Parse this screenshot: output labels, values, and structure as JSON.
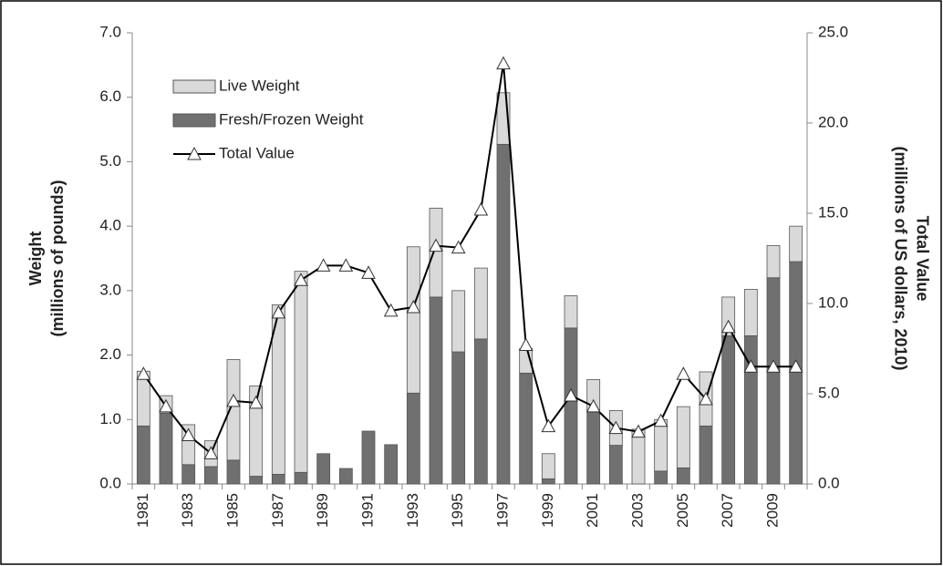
{
  "chart_data": {
    "type": "bar",
    "stacked": true,
    "ylabel": [
      "Weight",
      "(millions of pounds)"
    ],
    "y2label": [
      "Total Value",
      "(millions of US dollars, 2010)"
    ],
    "categories": [
      "1981",
      null,
      "1983",
      null,
      "1985",
      null,
      "1987",
      null,
      "1989",
      null,
      "1991",
      null,
      "1993",
      null,
      "1995",
      null,
      "1997",
      null,
      "1999",
      null,
      "2001",
      null,
      "2003",
      null,
      "2005",
      null,
      "2007",
      null,
      "2009",
      null
    ],
    "series": [
      {
        "name": "Fresh/Frozen Weight",
        "type": "bar",
        "color": "#707070",
        "values": [
          0.9,
          1.1,
          0.3,
          0.27,
          0.37,
          0.12,
          0.15,
          0.18,
          0.47,
          0.24,
          0.82,
          0.61,
          1.41,
          2.9,
          2.05,
          2.25,
          5.27,
          1.72,
          0.08,
          2.42,
          1.15,
          0.6,
          0,
          0.2,
          0.25,
          0.9,
          2.3,
          2.3,
          3.2,
          3.45
        ]
      },
      {
        "name": "Live Weight",
        "type": "bar",
        "color": "#d9d9d9",
        "values": [
          0.85,
          0.27,
          0.62,
          0.4,
          1.56,
          1.4,
          2.63,
          3.12,
          0,
          0,
          0,
          0,
          2.27,
          1.38,
          0.95,
          1.1,
          0.8,
          0.38,
          0.39,
          0.5,
          0.47,
          0.54,
          0.85,
          0.8,
          0.95,
          0.84,
          0.6,
          0.72,
          0.5,
          0.55
        ]
      },
      {
        "name": "Total Value",
        "type": "line",
        "axis": "y2",
        "color": "#000000",
        "values": [
          6.1,
          4.3,
          2.7,
          1.7,
          4.6,
          4.5,
          9.5,
          11.3,
          12.1,
          12.1,
          11.7,
          9.6,
          9.8,
          13.2,
          13.1,
          15.2,
          23.3,
          7.7,
          3.2,
          4.9,
          4.3,
          3.1,
          2.9,
          3.5,
          6.1,
          4.7,
          8.7,
          6.5,
          6.5,
          6.5
        ]
      }
    ],
    "legend_order": [
      1,
      0,
      2
    ],
    "legend": "upper left",
    "ylim": [
      0,
      7
    ],
    "yticks": [
      {
        "value": 0,
        "label": "0.0"
      },
      {
        "value": 1,
        "label": "1.0"
      },
      {
        "value": 2,
        "label": "2.0"
      },
      {
        "value": 3,
        "label": "3.0"
      },
      {
        "value": 4,
        "label": "4.0"
      },
      {
        "value": 5,
        "label": "5.0"
      },
      {
        "value": 6,
        "label": "6.0"
      },
      {
        "value": 7,
        "label": "7.0"
      }
    ],
    "y2lim": [
      0,
      25
    ],
    "y2ticks": [
      {
        "value": 0,
        "label": "0.0"
      },
      {
        "value": 5,
        "label": "5.0"
      },
      {
        "value": 10,
        "label": "10.0"
      },
      {
        "value": 15,
        "label": "15.0"
      },
      {
        "value": 20,
        "label": "20.0"
      },
      {
        "value": 25,
        "label": "25.0"
      }
    ],
    "grid": false
  }
}
